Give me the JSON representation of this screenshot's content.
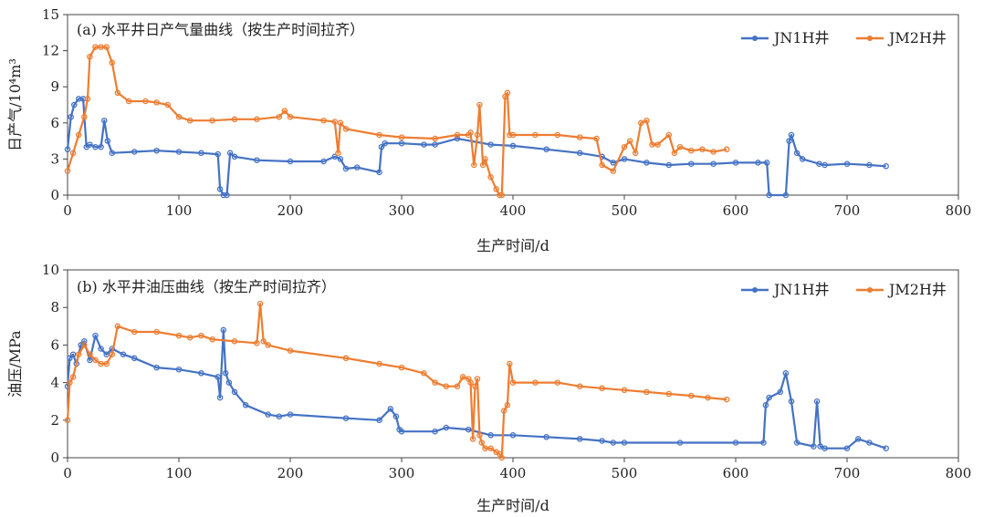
{
  "colors": {
    "jn1h": "#4472C4",
    "jm2h": "#ED7D31",
    "axis": "#444444"
  },
  "chart_data": [
    {
      "type": "line",
      "title": "(a) 水平井日产气量曲线（按生产时间拉齐）",
      "xlabel": "生产时间/d",
      "ylabel": "日产气/10⁴m³",
      "xlim": [
        0,
        800
      ],
      "ylim": [
        0,
        15
      ],
      "xticks": [
        "0",
        "100",
        "200",
        "300",
        "400",
        "500",
        "600",
        "700",
        "800"
      ],
      "yticks": [
        "0",
        "3",
        "6",
        "9",
        "12",
        "15"
      ],
      "legend_position": "top-right",
      "series": [
        {
          "name": "JN1H井",
          "color": "#4472C4",
          "x": [
            0,
            3,
            6,
            10,
            14,
            17,
            20,
            25,
            30,
            33,
            36,
            40,
            60,
            80,
            100,
            120,
            135,
            137,
            140,
            143,
            146,
            150,
            170,
            200,
            230,
            240,
            245,
            250,
            260,
            280,
            282,
            285,
            300,
            320,
            330,
            350,
            380,
            400,
            430,
            460,
            480,
            490,
            500,
            520,
            540,
            560,
            580,
            600,
            620,
            628,
            630,
            645,
            648,
            650,
            655,
            660,
            675,
            680,
            700,
            720,
            735
          ],
          "y": [
            3.8,
            6.5,
            7.5,
            8,
            8,
            4,
            4.2,
            4,
            4,
            6.2,
            4.5,
            3.5,
            3.6,
            3.7,
            3.6,
            3.5,
            3.4,
            0.5,
            0,
            0,
            3.5,
            3.2,
            2.9,
            2.8,
            2.8,
            3.2,
            3,
            2.2,
            2.3,
            1.9,
            4,
            4.3,
            4.3,
            4.2,
            4.2,
            4.7,
            4.2,
            4.1,
            3.8,
            3.5,
            3.2,
            2.7,
            3,
            2.7,
            2.5,
            2.6,
            2.6,
            2.7,
            2.7,
            2.7,
            0,
            0,
            4.5,
            5,
            3.5,
            3,
            2.6,
            2.5,
            2.6,
            2.5,
            2.4
          ]
        },
        {
          "name": "JM2H井",
          "color": "#ED7D31",
          "x": [
            0,
            5,
            10,
            15,
            18,
            20,
            25,
            30,
            35,
            40,
            45,
            55,
            70,
            80,
            90,
            100,
            110,
            130,
            150,
            170,
            190,
            195,
            200,
            230,
            240,
            243,
            245,
            250,
            280,
            300,
            330,
            350,
            360,
            362,
            365,
            368,
            370,
            373,
            375,
            380,
            385,
            388,
            390,
            393,
            395,
            397,
            400,
            420,
            440,
            460,
            475,
            480,
            490,
            500,
            505,
            510,
            515,
            520,
            525,
            530,
            540,
            545,
            550,
            560,
            570,
            580,
            592
          ],
          "y": [
            2,
            3.5,
            5,
            6.5,
            8,
            11.5,
            12.3,
            12.3,
            12.3,
            11,
            8.5,
            7.8,
            7.8,
            7.7,
            7.5,
            6.5,
            6.2,
            6.2,
            6.3,
            6.3,
            6.5,
            7,
            6.5,
            6.2,
            6.1,
            3.5,
            6,
            5.5,
            5,
            4.8,
            4.7,
            5,
            5,
            5.2,
            2.5,
            5,
            7.5,
            2.5,
            3,
            1.5,
            0.5,
            0,
            0,
            8.2,
            8.5,
            5,
            5,
            5,
            5,
            4.8,
            4.7,
            2.5,
            2,
            4,
            4.5,
            3.5,
            6,
            6.2,
            4.2,
            4.2,
            5,
            3.5,
            4,
            3.7,
            3.8,
            3.6,
            3.8
          ]
        }
      ]
    },
    {
      "type": "line",
      "title": "(b) 水平井油压曲线（按生产时间拉齐）",
      "xlabel": "生产时间/d",
      "ylabel": "油压/MPa",
      "xlim": [
        0,
        800
      ],
      "ylim": [
        0,
        10
      ],
      "xticks": [
        "0",
        "100",
        "200",
        "300",
        "400",
        "500",
        "600",
        "700",
        "800"
      ],
      "yticks": [
        "0",
        "2",
        "4",
        "6",
        "8",
        "10"
      ],
      "legend_position": "top-right",
      "series": [
        {
          "name": "JN1H井",
          "color": "#4472C4",
          "x": [
            0,
            2,
            5,
            8,
            12,
            15,
            20,
            25,
            30,
            35,
            40,
            50,
            60,
            80,
            100,
            120,
            135,
            137,
            140,
            142,
            145,
            150,
            160,
            180,
            190,
            200,
            250,
            280,
            290,
            295,
            298,
            300,
            330,
            340,
            360,
            380,
            400,
            430,
            460,
            480,
            490,
            500,
            550,
            600,
            625,
            627,
            630,
            640,
            645,
            650,
            655,
            670,
            673,
            676,
            680,
            700,
            710,
            720,
            735
          ],
          "y": [
            3.8,
            5.3,
            5.5,
            5,
            6,
            6.2,
            5.2,
            6.5,
            5.8,
            5.5,
            5.8,
            5.5,
            5.3,
            4.8,
            4.7,
            4.5,
            4.3,
            3.2,
            6.8,
            4.5,
            4,
            3.5,
            2.8,
            2.3,
            2.2,
            2.3,
            2.1,
            2,
            2.6,
            2.2,
            1.5,
            1.4,
            1.4,
            1.6,
            1.5,
            1.2,
            1.2,
            1.1,
            1,
            0.9,
            0.8,
            0.8,
            0.8,
            0.8,
            0.8,
            2.8,
            3.2,
            3.5,
            4.5,
            3,
            0.8,
            0.6,
            3,
            0.6,
            0.5,
            0.5,
            1,
            0.8,
            0.5
          ]
        },
        {
          "name": "JM2H井",
          "color": "#ED7D31",
          "x": [
            0,
            2,
            5,
            10,
            15,
            20,
            25,
            30,
            35,
            40,
            45,
            60,
            80,
            100,
            110,
            120,
            130,
            150,
            170,
            173,
            176,
            180,
            200,
            250,
            280,
            300,
            320,
            330,
            340,
            350,
            355,
            360,
            362,
            364,
            366,
            368,
            370,
            372,
            375,
            380,
            385,
            388,
            390,
            392,
            395,
            397,
            400,
            420,
            440,
            460,
            480,
            500,
            520,
            540,
            560,
            575,
            592
          ],
          "y": [
            2,
            4,
            4.3,
            5.5,
            6,
            5.5,
            5.2,
            5,
            5,
            5.5,
            7,
            6.7,
            6.7,
            6.5,
            6.4,
            6.5,
            6.3,
            6.2,
            6.1,
            8.2,
            6.2,
            6,
            5.7,
            5.3,
            5,
            4.8,
            4.5,
            4,
            3.8,
            3.8,
            4.3,
            4.2,
            4,
            1,
            3.8,
            4.2,
            1.2,
            0.8,
            0.5,
            0.5,
            0.3,
            0.2,
            0,
            2.5,
            2.8,
            5,
            4,
            4,
            4,
            3.8,
            3.7,
            3.6,
            3.5,
            3.4,
            3.3,
            3.2,
            3.1
          ]
        }
      ]
    }
  ]
}
